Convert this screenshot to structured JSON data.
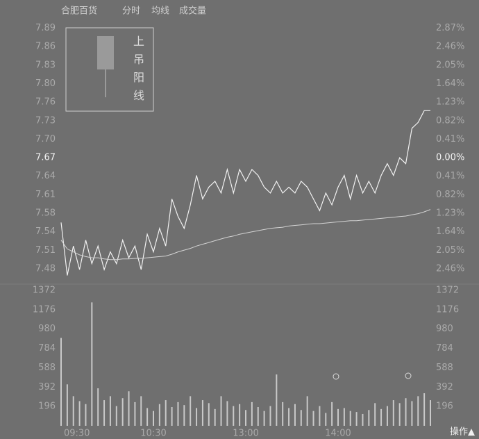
{
  "chart_data": [
    {
      "type": "line",
      "title": "合肥百货",
      "view_labels": [
        "分时",
        "均线",
        "成交量"
      ],
      "annotation": "上吊阳线",
      "xlim": [
        0,
        60
      ],
      "ylim": [
        7.46,
        7.905
      ],
      "y2lim": [
        -2.738,
        3.064
      ],
      "yticks": [
        {
          "value": 7.8901,
          "label": "7.89"
        },
        {
          "value": 7.8587,
          "label": "7.86"
        },
        {
          "value": 7.8272,
          "label": "7.83"
        },
        {
          "value": 7.7958,
          "label": "7.80"
        },
        {
          "value": 7.7643,
          "label": "7.76"
        },
        {
          "value": 7.7329,
          "label": "7.73"
        },
        {
          "value": 7.7014,
          "label": "7.70"
        },
        7.67,
        {
          "value": 7.6386,
          "label": "7.64"
        },
        {
          "value": 7.6071,
          "label": "7.61"
        },
        {
          "value": 7.5757,
          "label": "7.58"
        },
        {
          "value": 7.5442,
          "label": "7.54"
        },
        {
          "value": 7.5128,
          "label": "7.51"
        },
        {
          "value": 7.4813,
          "label": "7.48"
        }
      ],
      "y2ticks": [
        {
          "value": 2.87,
          "label": "2.87%"
        },
        {
          "value": 2.46,
          "label": "2.46%"
        },
        {
          "value": 2.05,
          "label": "2.05%"
        },
        {
          "value": 1.64,
          "label": "1.64%"
        },
        {
          "value": 1.23,
          "label": "1.23%"
        },
        {
          "value": 0.82,
          "label": "0.82%"
        },
        {
          "value": 0.41,
          "label": "0.41%"
        },
        {
          "value": 0,
          "label": "0.00%"
        },
        {
          "value": -0.41,
          "label": "0.41%"
        },
        {
          "value": -0.82,
          "label": "0.82%"
        },
        {
          "value": -1.23,
          "label": "1.23%"
        },
        {
          "value": -1.64,
          "label": "1.64%"
        },
        {
          "value": -2.05,
          "label": "2.05%"
        },
        {
          "value": -2.46,
          "label": "2.46%"
        }
      ],
      "series": [
        {
          "color": "#f2f2f2",
          "values": [
            7.56,
            7.47,
            7.52,
            7.48,
            7.53,
            7.49,
            7.52,
            7.48,
            7.51,
            7.49,
            7.53,
            7.5,
            7.52,
            7.48,
            7.54,
            7.51,
            7.55,
            7.52,
            7.6,
            7.57,
            7.55,
            7.59,
            7.64,
            7.6,
            7.62,
            7.63,
            7.61,
            7.65,
            7.61,
            7.65,
            7.63,
            7.65,
            7.64,
            7.62,
            7.61,
            7.63,
            7.61,
            7.62,
            7.61,
            7.63,
            7.62,
            7.6,
            7.58,
            7.61,
            7.59,
            7.62,
            7.64,
            7.6,
            7.64,
            7.61,
            7.63,
            7.61,
            7.64,
            7.66,
            7.64,
            7.67,
            7.66,
            7.72,
            7.73,
            7.75,
            7.75
          ]
        },
        {
          "color": "#d4d4d4",
          "values": [
            7.53,
            7.515,
            7.51,
            7.505,
            7.502,
            7.5,
            7.5,
            7.498,
            7.497,
            7.497,
            7.498,
            7.498,
            7.499,
            7.499,
            7.5,
            7.501,
            7.502,
            7.503,
            7.506,
            7.51,
            7.513,
            7.516,
            7.52,
            7.523,
            7.526,
            7.529,
            7.532,
            7.535,
            7.537,
            7.54,
            7.542,
            7.544,
            7.546,
            7.548,
            7.55,
            7.551,
            7.552,
            7.554,
            7.555,
            7.556,
            7.557,
            7.558,
            7.558,
            7.559,
            7.56,
            7.561,
            7.562,
            7.563,
            7.563,
            7.564,
            7.565,
            7.566,
            7.567,
            7.568,
            7.569,
            7.57,
            7.571,
            7.573,
            7.575,
            7.578,
            7.582
          ]
        }
      ]
    },
    {
      "type": "bar",
      "color": "#c9c9c9",
      "ylim": [
        0,
        1372
      ],
      "xlim": [
        0,
        60
      ],
      "yticks": [
        1372,
        1176,
        980,
        784,
        588,
        392,
        196
      ],
      "xticks": [
        {
          "value": 0,
          "label": "09:30"
        },
        {
          "value": 15,
          "label": "10:30"
        },
        {
          "value": 30,
          "label": "13:00"
        },
        {
          "value": 45,
          "label": "14:00"
        }
      ],
      "values": [
        890,
        420,
        300,
        250,
        220,
        1250,
        380,
        260,
        300,
        200,
        280,
        350,
        240,
        300,
        180,
        150,
        220,
        260,
        190,
        240,
        210,
        300,
        180,
        260,
        230,
        170,
        300,
        250,
        200,
        220,
        160,
        240,
        190,
        150,
        200,
        520,
        240,
        180,
        220,
        160,
        300,
        150,
        200,
        130,
        240,
        170,
        180,
        150,
        140,
        120,
        160,
        230,
        170,
        200,
        260,
        230,
        280,
        250,
        300,
        330,
        260
      ]
    }
  ],
  "footer": {
    "button": "操作▲"
  }
}
